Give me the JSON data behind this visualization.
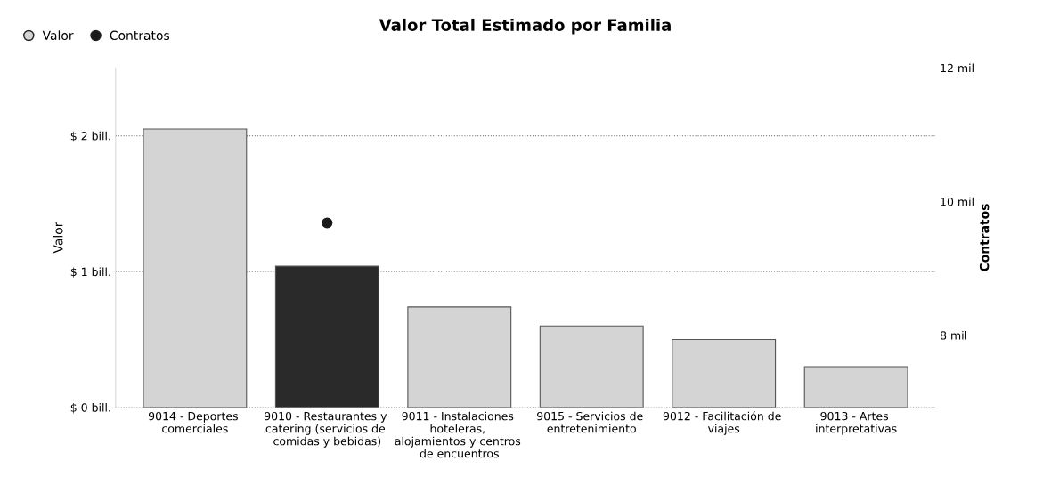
{
  "chart_data": {
    "type": "bar",
    "title": "Valor Total Estimado por Familia",
    "categories": [
      "9014 - Deportes comerciales",
      "9010 - Restaurantes y catering (servicios de comidas y bebidas)",
      "9011 - Instalaciones hoteleras, alojamientos y centros de encuentros",
      "9015 - Servicios de entretenimiento",
      "9012 - Facilitación de viajes",
      "9013 - Artes interpretativas"
    ],
    "series": [
      {
        "name": "Valor",
        "color": "#d4d4d4",
        "colors": [
          "#d4d4d4",
          "#2a2a2a",
          "#d4d4d4",
          "#d4d4d4",
          "#d4d4d4",
          "#d4d4d4"
        ],
        "values": [
          2.05,
          1.04,
          0.74,
          0.6,
          0.5,
          0.3
        ]
      },
      {
        "name": "Contratos",
        "type": "scatter",
        "axis": "y2",
        "color": "#1a1a1a",
        "values": [
          null,
          9.68,
          null,
          null,
          null,
          null
        ]
      }
    ],
    "ylabel": "Valor",
    "y2label": "Contratos",
    "ylim": [
      0,
      2.5
    ],
    "yticks": [
      {
        "value": 0,
        "label": "$ 0 bill."
      },
      {
        "value": 1,
        "label": "$ 1 bill."
      },
      {
        "value": 2,
        "label": "$ 2 bill."
      }
    ],
    "y2lim": [
      6.92,
      12
    ],
    "y2ticks": [
      {
        "value": 8,
        "label": "8 mil"
      },
      {
        "value": 10,
        "label": "10 mil"
      },
      {
        "value": 12,
        "label": "12 mil"
      }
    ],
    "grid": "y",
    "legend": "top left",
    "marker": "circle"
  }
}
